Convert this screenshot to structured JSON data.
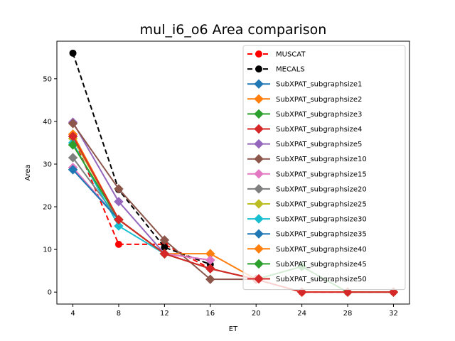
{
  "chart_data": {
    "type": "line",
    "title": "mul_i6_o6 Area comparison",
    "xlabel": "ET",
    "ylabel": "Area",
    "xlim": [
      2.6,
      33.4
    ],
    "ylim": [
      -2.8,
      58.8
    ],
    "xticks": [
      4,
      8,
      12,
      16,
      20,
      24,
      28,
      32
    ],
    "yticks": [
      0,
      10,
      20,
      30,
      40,
      50
    ],
    "grid": false,
    "legend_position": "upper right",
    "series": [
      {
        "name": "MUSCAT",
        "color": "#ff0000",
        "marker": "circle",
        "dashed": true,
        "x": [
          4,
          8,
          12,
          16,
          20,
          24,
          28,
          32
        ],
        "values": [
          36.5,
          11.2,
          11.2,
          5.5,
          3.0,
          0,
          0,
          0
        ]
      },
      {
        "name": "MECALS",
        "color": "#000000",
        "marker": "circle",
        "dashed": true,
        "x": [
          4,
          8,
          12,
          16
        ],
        "values": [
          56.0,
          24.0,
          10.5,
          6.5
        ]
      },
      {
        "name": "SubXPAT_subgraphsize1",
        "color": "#1f77b4",
        "marker": "diamond",
        "dashed": false,
        "x": [
          4,
          8,
          12
        ],
        "values": [
          28.7,
          17.0,
          9.0
        ]
      },
      {
        "name": "SubXPAT_subgraphsize2",
        "color": "#ff7f0e",
        "marker": "diamond",
        "dashed": false,
        "x": [
          4,
          8,
          12,
          16,
          20,
          24,
          28,
          32
        ],
        "values": [
          37.0,
          17.0,
          9.0,
          9.0,
          3.0,
          0,
          0,
          0
        ]
      },
      {
        "name": "SubXPAT_subgraphsize3",
        "color": "#2ca02c",
        "marker": "diamond",
        "dashed": false,
        "x": [
          4,
          8,
          12
        ],
        "values": [
          34.5,
          17.0,
          9.0
        ]
      },
      {
        "name": "SubXPAT_subgraphsize4",
        "color": "#d62728",
        "marker": "diamond",
        "dashed": false,
        "x": [
          4,
          8,
          12,
          16
        ],
        "values": [
          36.5,
          17.0,
          9.0,
          5.5
        ]
      },
      {
        "name": "SubXPAT_subgraphsize5",
        "color": "#9467bd",
        "marker": "diamond",
        "dashed": false,
        "x": [
          4,
          8,
          12,
          16
        ],
        "values": [
          39.8,
          21.2,
          9.0,
          7.5
        ]
      },
      {
        "name": "SubXPAT_subgraphsize10",
        "color": "#8c564b",
        "marker": "diamond",
        "dashed": false,
        "x": [
          4,
          8,
          12,
          16,
          20
        ],
        "values": [
          39.5,
          24.2,
          12.2,
          3.0,
          3.0
        ]
      },
      {
        "name": "SubXPAT_subgraphsize15",
        "color": "#e377c2",
        "marker": "diamond",
        "dashed": false,
        "x": [
          4,
          8,
          12,
          16
        ],
        "values": [
          29.2,
          17.0,
          9.0,
          7.5
        ]
      },
      {
        "name": "SubXPAT_subgraphsize20",
        "color": "#7f7f7f",
        "marker": "diamond",
        "dashed": false,
        "x": [
          4,
          8,
          12
        ],
        "values": [
          31.5,
          17.0,
          9.0
        ]
      },
      {
        "name": "SubXPAT_subgraphsize25",
        "color": "#bcbd22",
        "marker": "diamond",
        "dashed": false,
        "x": [
          4,
          8,
          12
        ],
        "values": [
          36.0,
          17.0,
          9.0
        ]
      },
      {
        "name": "SubXPAT_subgraphsize30",
        "color": "#17becf",
        "marker": "diamond",
        "dashed": false,
        "x": [
          4,
          8,
          12
        ],
        "values": [
          35.0,
          15.5,
          9.0
        ]
      },
      {
        "name": "SubXPAT_subgraphsize35",
        "color": "#1f77b4",
        "marker": "diamond",
        "dashed": false,
        "x": [
          4,
          8,
          12
        ],
        "values": [
          28.7,
          17.0,
          9.0
        ]
      },
      {
        "name": "SubXPAT_subgraphsize40",
        "color": "#ff7f0e",
        "marker": "diamond",
        "dashed": false,
        "x": [
          4,
          8,
          12
        ],
        "values": [
          37.0,
          17.0,
          9.0
        ]
      },
      {
        "name": "SubXPAT_subgraphsize45",
        "color": "#2ca02c",
        "marker": "diamond",
        "dashed": false,
        "x": [
          4,
          8,
          12,
          16,
          20,
          24,
          28,
          32
        ],
        "values": [
          34.5,
          17.0,
          9.0,
          5.5,
          3.0,
          6.0,
          0,
          0
        ]
      },
      {
        "name": "SubXPAT_subgraphsize50",
        "color": "#d62728",
        "marker": "diamond",
        "dashed": false,
        "x": [
          4,
          8,
          12,
          16,
          20,
          24,
          28,
          32
        ],
        "values": [
          36.5,
          17.0,
          9.0,
          5.5,
          3.0,
          0,
          0,
          0
        ]
      }
    ]
  }
}
